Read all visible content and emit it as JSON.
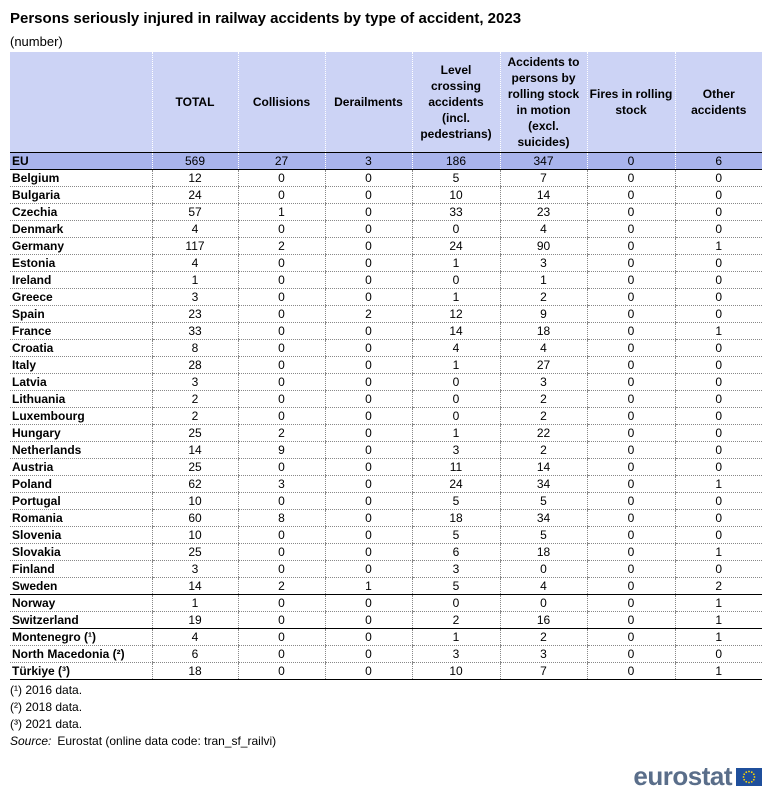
{
  "title": "Persons seriously injured in railway accidents by type of accident, 2023",
  "subtitle": "(number)",
  "table": {
    "columns": [
      "TOTAL",
      "Collisions",
      "Derailments",
      "Level crossing accidents (incl. pedestrians)",
      "Accidents to persons by rolling stock in motion (excl. suicides)",
      "Fires in rolling stock",
      "Other accidents"
    ],
    "groups": [
      [
        [
          "EU",
          569,
          27,
          3,
          186,
          347,
          0,
          6
        ]
      ],
      [
        [
          "Belgium",
          12,
          0,
          0,
          5,
          7,
          0,
          0
        ],
        [
          "Bulgaria",
          24,
          0,
          0,
          10,
          14,
          0,
          0
        ],
        [
          "Czechia",
          57,
          1,
          0,
          33,
          23,
          0,
          0
        ],
        [
          "Denmark",
          4,
          0,
          0,
          0,
          4,
          0,
          0
        ],
        [
          "Germany",
          117,
          2,
          0,
          24,
          90,
          0,
          1
        ],
        [
          "Estonia",
          4,
          0,
          0,
          1,
          3,
          0,
          0
        ],
        [
          "Ireland",
          1,
          0,
          0,
          0,
          1,
          0,
          0
        ],
        [
          "Greece",
          3,
          0,
          0,
          1,
          2,
          0,
          0
        ],
        [
          "Spain",
          23,
          0,
          2,
          12,
          9,
          0,
          0
        ],
        [
          "France",
          33,
          0,
          0,
          14,
          18,
          0,
          1
        ],
        [
          "Croatia",
          8,
          0,
          0,
          4,
          4,
          0,
          0
        ],
        [
          "Italy",
          28,
          0,
          0,
          1,
          27,
          0,
          0
        ],
        [
          "Latvia",
          3,
          0,
          0,
          0,
          3,
          0,
          0
        ],
        [
          "Lithuania",
          2,
          0,
          0,
          0,
          2,
          0,
          0
        ],
        [
          "Luxembourg",
          2,
          0,
          0,
          0,
          2,
          0,
          0
        ],
        [
          "Hungary",
          25,
          2,
          0,
          1,
          22,
          0,
          0
        ],
        [
          "Netherlands",
          14,
          9,
          0,
          3,
          2,
          0,
          0
        ],
        [
          "Austria",
          25,
          0,
          0,
          11,
          14,
          0,
          0
        ],
        [
          "Poland",
          62,
          3,
          0,
          24,
          34,
          0,
          1
        ],
        [
          "Portugal",
          10,
          0,
          0,
          5,
          5,
          0,
          0
        ],
        [
          "Romania",
          60,
          8,
          0,
          18,
          34,
          0,
          0
        ],
        [
          "Slovenia",
          10,
          0,
          0,
          5,
          5,
          0,
          0
        ],
        [
          "Slovakia",
          25,
          0,
          0,
          6,
          18,
          0,
          1
        ],
        [
          "Finland",
          3,
          0,
          0,
          3,
          0,
          0,
          0
        ],
        [
          "Sweden",
          14,
          2,
          1,
          5,
          4,
          0,
          2
        ]
      ],
      [
        [
          "Norway",
          1,
          0,
          0,
          0,
          0,
          0,
          1
        ],
        [
          "Switzerland",
          19,
          0,
          0,
          2,
          16,
          0,
          1
        ]
      ],
      [
        [
          "Montenegro (¹)",
          4,
          0,
          0,
          1,
          2,
          0,
          1
        ],
        [
          "North Macedonia (²)",
          6,
          0,
          0,
          3,
          3,
          0,
          0
        ],
        [
          "Türkiye (³)",
          18,
          0,
          0,
          10,
          7,
          0,
          1
        ]
      ]
    ]
  },
  "footnotes": [
    "(¹) 2016 data.",
    "(²) 2018 data.",
    "(³) 2021 data."
  ],
  "source": {
    "label": "Source:",
    "text": "Eurostat (online data code:  tran_sf_railvi)"
  },
  "logo": "eurostat"
}
